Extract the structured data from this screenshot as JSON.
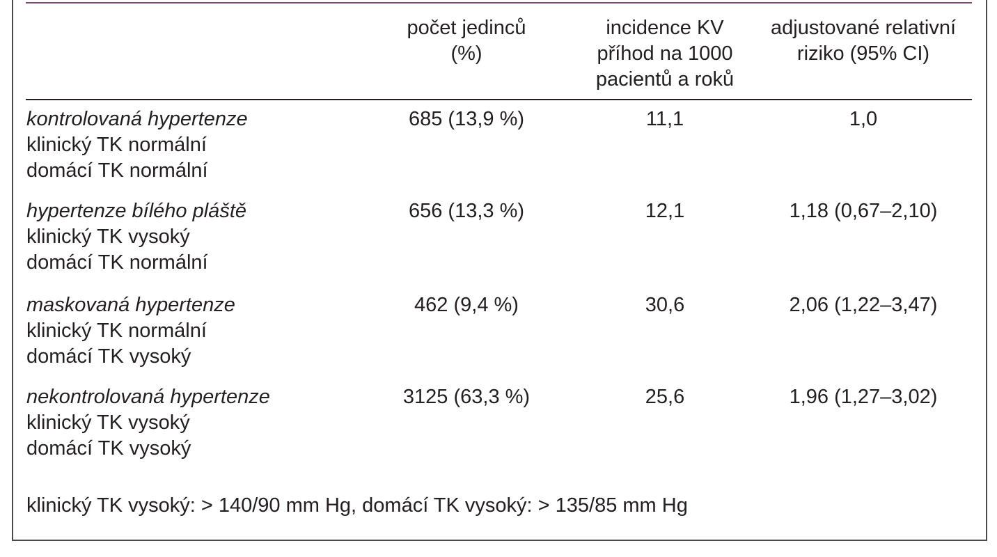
{
  "table": {
    "headers": [
      "",
      "počet jedinců\n(%)",
      "incidence KV\npříhod na 1000\npacientů a roků",
      "adjustované relativní\nriziko (95% CI)"
    ],
    "rows": [
      {
        "category": "kontrolovaná hypertenze",
        "clinical": "klinický TK normální",
        "home": "domácí TK normální",
        "count": "685 (13,9 %)",
        "incidence": "11,1",
        "risk": "1,0"
      },
      {
        "category": "hypertenze bílého pláště",
        "clinical": "klinický TK vysoký",
        "home": "domácí TK normální",
        "count": "656 (13,3 %)",
        "incidence": "12,1",
        "risk": "1,18 (0,67–2,10)"
      },
      {
        "category": "maskovaná hypertenze",
        "clinical": "klinický TK normální",
        "home": "domácí TK vysoký",
        "count": "462 (9,4 %)",
        "incidence": "30,6",
        "risk": "2,06 (1,22–3,47)"
      },
      {
        "category": "nekontrolovaná hypertenze",
        "clinical": "klinický TK vysoký",
        "home": "domácí TK vysoký",
        "count": "3125 (63,3 %)",
        "incidence": "25,6",
        "risk": "1,96 (1,27–3,02)"
      }
    ]
  },
  "footnote": "klinický TK vysoký: > 140/90 mm Hg, domácí TK vysoký: > 135/85 mm Hg"
}
